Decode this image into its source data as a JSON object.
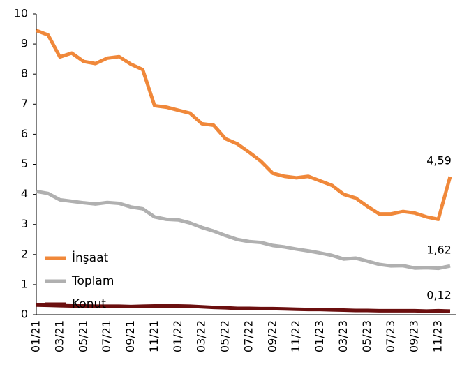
{
  "chart_data": {
    "type": "line",
    "categories": [
      "01/21",
      null,
      "03/21",
      null,
      "05/21",
      null,
      "07/21",
      null,
      "09/21",
      null,
      "11/21",
      null,
      "01/22",
      null,
      "03/22",
      null,
      "05/22",
      null,
      "07/22",
      null,
      "09/22",
      null,
      "11/22",
      null,
      "01/23",
      null,
      "03/23",
      null,
      "05/23",
      null,
      "07/23",
      null,
      "09/23",
      null,
      "11/23",
      null
    ],
    "series": [
      {
        "name": "İnşaat",
        "color": "#f0883a",
        "values": [
          9.45,
          9.3,
          8.57,
          8.7,
          8.42,
          8.35,
          8.53,
          8.58,
          8.33,
          8.15,
          6.95,
          6.9,
          6.8,
          6.7,
          6.35,
          6.3,
          5.85,
          5.68,
          5.4,
          5.1,
          4.7,
          4.6,
          4.55,
          4.6,
          4.45,
          4.3,
          4.0,
          3.88,
          3.6,
          3.35,
          3.35,
          3.43,
          3.38,
          3.25,
          3.17,
          4.59
        ],
        "value_labels": [
          null,
          null,
          null,
          null,
          null,
          null,
          null,
          null,
          null,
          null,
          null,
          null,
          null,
          null,
          null,
          null,
          null,
          null,
          null,
          null,
          null,
          null,
          null,
          null,
          null,
          null,
          null,
          null,
          null,
          null,
          null,
          null,
          null,
          null,
          null,
          "4,59"
        ]
      },
      {
        "name": "Toplam",
        "color": "#b0b0b0",
        "values": [
          4.1,
          4.03,
          3.82,
          3.77,
          3.72,
          3.68,
          3.73,
          3.7,
          3.58,
          3.52,
          3.25,
          3.17,
          3.15,
          3.05,
          2.9,
          2.78,
          2.63,
          2.5,
          2.43,
          2.4,
          2.3,
          2.25,
          2.18,
          2.12,
          2.05,
          1.97,
          1.85,
          1.88,
          1.78,
          1.67,
          1.62,
          1.63,
          1.55,
          1.56,
          1.54,
          1.62
        ],
        "value_labels": [
          null,
          null,
          null,
          null,
          null,
          null,
          null,
          null,
          null,
          null,
          null,
          null,
          null,
          null,
          null,
          null,
          null,
          null,
          null,
          null,
          null,
          null,
          null,
          null,
          null,
          null,
          null,
          null,
          null,
          null,
          null,
          null,
          null,
          null,
          null,
          "1,62"
        ]
      },
      {
        "name": "Konut",
        "color": "#6b0f0f",
        "values": [
          0.32,
          0.31,
          0.3,
          0.29,
          0.29,
          0.28,
          0.28,
          0.28,
          0.27,
          0.28,
          0.29,
          0.29,
          0.29,
          0.28,
          0.26,
          0.24,
          0.23,
          0.21,
          0.21,
          0.2,
          0.2,
          0.19,
          0.18,
          0.17,
          0.17,
          0.16,
          0.15,
          0.14,
          0.14,
          0.13,
          0.13,
          0.13,
          0.13,
          0.12,
          0.13,
          0.12
        ],
        "value_labels": [
          null,
          null,
          null,
          null,
          null,
          null,
          null,
          null,
          null,
          null,
          null,
          null,
          null,
          null,
          null,
          null,
          null,
          null,
          null,
          null,
          null,
          null,
          null,
          null,
          null,
          null,
          null,
          null,
          null,
          null,
          null,
          null,
          null,
          null,
          null,
          "0,12"
        ]
      }
    ],
    "ylim": [
      0,
      10
    ],
    "yticks": [
      0,
      1,
      2,
      3,
      4,
      5,
      6,
      7,
      8,
      9,
      10
    ],
    "grid": false,
    "legend": "lower left"
  }
}
